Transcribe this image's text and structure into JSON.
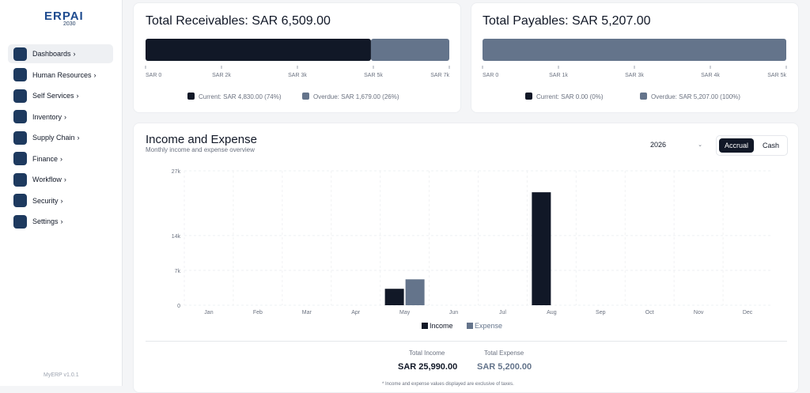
{
  "sidebar": {
    "logo": "ERPAI",
    "logo_sub": "2030",
    "items": [
      "Dashboards",
      "Human Resources",
      "Self Services",
      "Inventory",
      "Supply Chain",
      "Finance",
      "Workflow",
      "Security",
      "Settings"
    ],
    "version": "MyERP v1.0.1"
  },
  "receivables": {
    "title": "Total Receivables: SAR 6,509.00",
    "xlim": [
      0,
      6509
    ],
    "xticks": [
      {
        "value": 0,
        "label": "SAR 0"
      },
      {
        "value": 1627.25,
        "label": "SAR 2k"
      },
      {
        "value": 3254.5,
        "label": "SAR 3k"
      },
      {
        "value": 4881.75,
        "label": "SAR 5k"
      },
      {
        "value": 6509,
        "label": "SAR 7k"
      }
    ],
    "series": [
      {
        "legend": "Current: SAR 4,830.00 (74%)",
        "color": "#111827",
        "value": 4830
      },
      {
        "legend": "Overdue: SAR 1,679.00 (26%)",
        "color": "#64748b",
        "value": 1679
      }
    ]
  },
  "payables": {
    "title": "Total Payables: SAR 5,207.00",
    "xlim": [
      0,
      5207
    ],
    "xticks": [
      {
        "value": 0,
        "label": "SAR 0"
      },
      {
        "value": 1301.75,
        "label": "SAR 1k"
      },
      {
        "value": 2603.5,
        "label": "SAR 3k"
      },
      {
        "value": 3905.25,
        "label": "SAR 4k"
      },
      {
        "value": 5207,
        "label": "SAR 5k"
      }
    ],
    "series": [
      {
        "legend": "Current: SAR 0.00 (0%)",
        "color": "#111827",
        "value": 0
      },
      {
        "legend": "Overdue: SAR 5,207.00 (100%)",
        "color": "#64748b",
        "value": 5207
      }
    ]
  },
  "income_expense": {
    "title": "Income and Expense",
    "subtitle": "Monthly income and expense overview",
    "year": "2026",
    "buttons": [
      "Accrual",
      "Cash"
    ],
    "chart": {
      "type": "bar",
      "categories": [
        "Jan",
        "Feb",
        "Mar",
        "Apr",
        "May",
        "Jun",
        "Jul",
        "Aug",
        "Sep",
        "Oct",
        "Nov",
        "Dec"
      ],
      "ylim": [
        0,
        27000
      ],
      "yticks": [
        0,
        {
          "value": 7000,
          "label": "7k"
        },
        {
          "value": 14000,
          "label": "14k"
        },
        {
          "value": 27000,
          "label": "27k"
        }
      ],
      "grid": true,
      "series": [
        {
          "name": "Income",
          "color": "#111827",
          "values": [
            0,
            0,
            0,
            0,
            3300,
            0,
            0,
            22690,
            0,
            0,
            0,
            0
          ]
        },
        {
          "name": "Expense",
          "color": "#64748b",
          "values": [
            0,
            0,
            0,
            0,
            5200,
            0,
            0,
            0,
            0,
            0,
            0,
            0
          ]
        }
      ]
    },
    "totals": [
      {
        "label": "Total Income",
        "value": "SAR 25,990.00"
      },
      {
        "label": "Total Expense",
        "value": "SAR 5,200.00"
      }
    ],
    "note": "* Income and expense values displayed are exclusive of taxes."
  }
}
